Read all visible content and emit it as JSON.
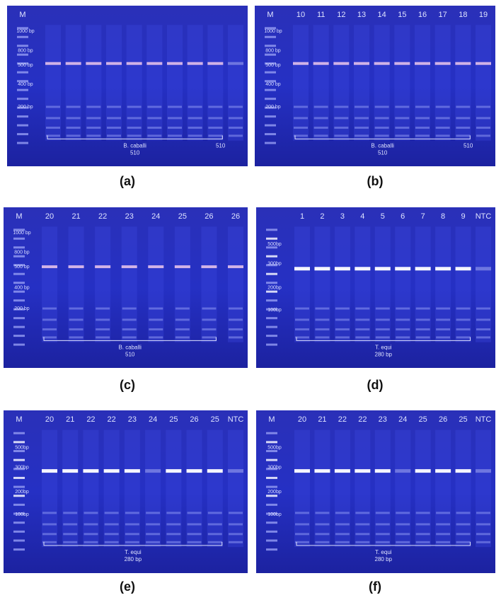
{
  "panels": [
    {
      "caption": "(a)",
      "lanes": [
        "M"
      ],
      "markers": [
        "1000 bp",
        "800 bp",
        "500 bp",
        "400 bp",
        "200 bp"
      ],
      "bracket": [
        "B. caballi",
        "510",
        "510"
      ]
    },
    {
      "caption": "(b)",
      "lanes": [
        "M",
        "10",
        "11",
        "12",
        "13",
        "14",
        "15",
        "16",
        "17",
        "18",
        "19"
      ],
      "markers": [
        "1000 bp",
        "800 bp",
        "500 bp",
        "400 bp",
        "200 bp"
      ],
      "bracket": [
        "B. caballi",
        "510",
        "510"
      ]
    },
    {
      "caption": "(c)",
      "lanes": [
        "M",
        "20",
        "21",
        "22",
        "23",
        "24",
        "25",
        "26",
        "26"
      ],
      "markers": [
        "1000 bp",
        "800 bp",
        "500 bp",
        "400 bp",
        "200 bp"
      ],
      "bracket": [
        "B. caballi",
        "510"
      ]
    },
    {
      "caption": "(d)",
      "lanes": [
        "1",
        "2",
        "3",
        "4",
        "5",
        "6",
        "7",
        "8",
        "9",
        "NTC"
      ],
      "markers": [
        "500bp",
        "300bp",
        "200bp",
        "100bp"
      ],
      "bracket": [
        "T. equi",
        "280 bp"
      ]
    },
    {
      "caption": "(e)",
      "lanes": [
        "M",
        "20",
        "21",
        "22",
        "22",
        "23",
        "24",
        "25",
        "26",
        "25",
        "NTC"
      ],
      "markers": [
        "500bp",
        "300bp",
        "200bp",
        "100bp"
      ],
      "bracket": [
        "T. equi",
        "280 bp"
      ]
    },
    {
      "caption": "(f)",
      "lanes": [
        "M",
        "20",
        "21",
        "22",
        "22",
        "23",
        "24",
        "25",
        "26",
        "25",
        "NTC"
      ],
      "markers": [
        "500bp",
        "300bp",
        "200bp",
        "100bp"
      ],
      "bracket": [
        "T. equi",
        "280 bp"
      ]
    }
  ]
}
